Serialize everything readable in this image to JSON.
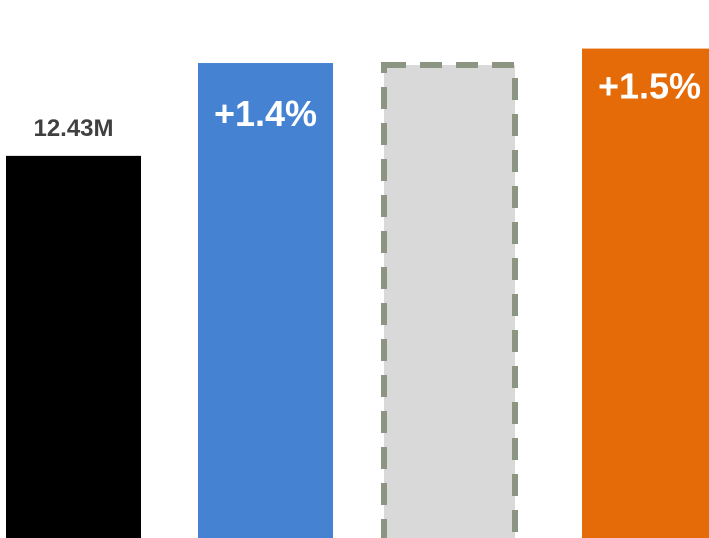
{
  "chart_data": {
    "type": "bar",
    "categories": [
      "",
      "",
      "",
      ""
    ],
    "values": [
      12.43,
      15.45,
      15.45,
      15.92
    ],
    "unit": "M",
    "ylim": [
      0,
      17.5
    ],
    "grid": false,
    "legend": "none",
    "bars": [
      {
        "fill": "#000000",
        "style": "solid",
        "label": "12.43M",
        "label_color": "#404040",
        "label_position": "above"
      },
      {
        "fill": "#4682D2",
        "style": "solid",
        "label": "+1.4%",
        "label_color": "#ffffff",
        "label_position": "inside-top"
      },
      {
        "fill": "#D9D9D9",
        "style": "dashed-outline",
        "stroke": "#8C9482",
        "label": "",
        "label_color": "#ffffff",
        "label_position": "inside-top"
      },
      {
        "fill": "#E56B09",
        "style": "solid",
        "label": "+1.5%",
        "label_color": "#ffffff",
        "label_position": "inside-top"
      }
    ]
  }
}
